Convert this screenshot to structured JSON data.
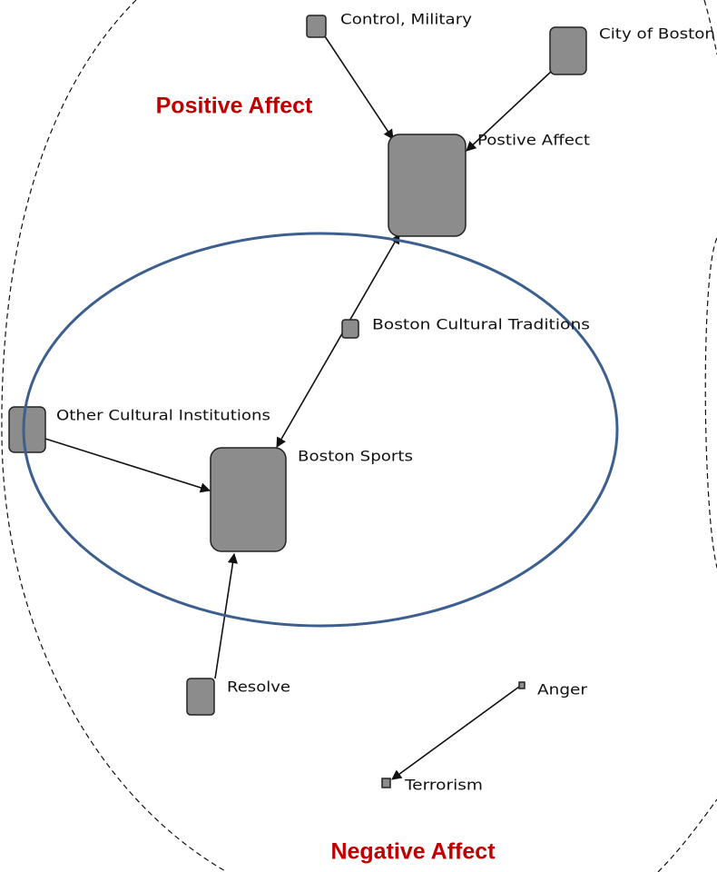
{
  "annotations": {
    "positive": "Positive Affect",
    "negative": "Negative Affect"
  },
  "nodes": [
    {
      "label": "Control, Military"
    },
    {
      "label": "City of Boston"
    },
    {
      "label": "Postive Affect"
    },
    {
      "label": "Boston Cultural Traditions"
    },
    {
      "label": "Other Cultural Institutions"
    },
    {
      "label": "Boston Sports"
    },
    {
      "label": "Resolve"
    },
    {
      "label": "Anger"
    },
    {
      "label": "Terrorism"
    }
  ]
}
